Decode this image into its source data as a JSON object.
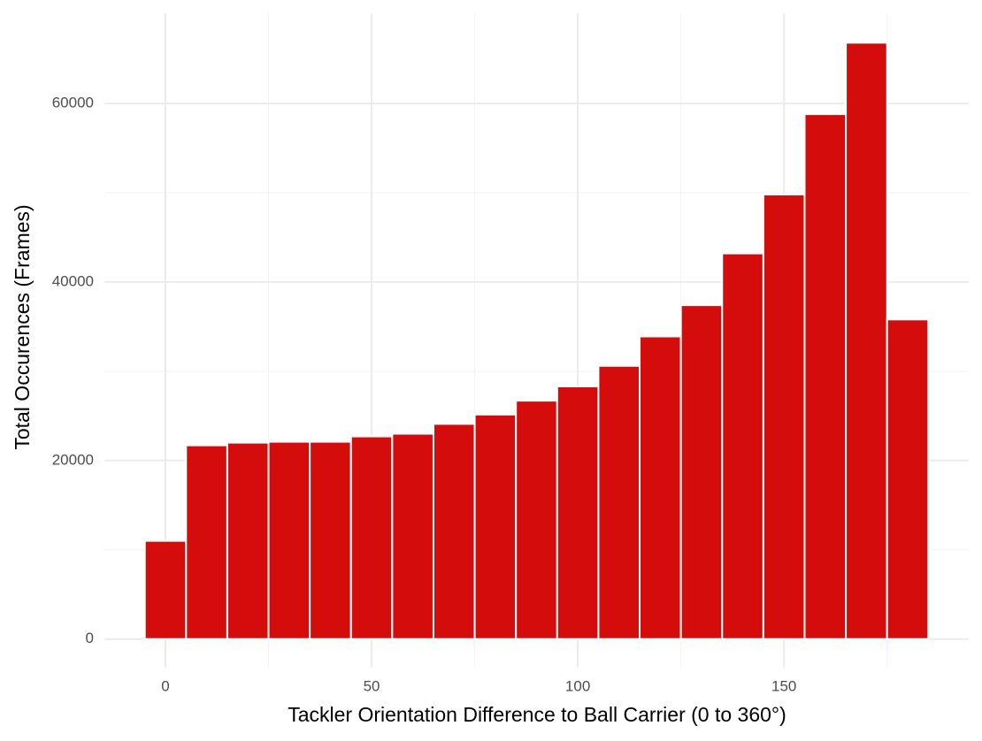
{
  "chart_data": {
    "type": "histogram",
    "xlabel": "Tackler Orientation Difference to Ball Carrier (0 to 360°)",
    "ylabel": "Total Occurences (Frames)",
    "bins": [
      -5,
      5,
      15,
      25,
      35,
      45,
      55,
      65,
      75,
      85,
      95,
      105,
      115,
      125,
      135,
      145,
      155,
      165,
      175,
      185
    ],
    "values": [
      11000,
      21700,
      22000,
      22100,
      22100,
      22700,
      23000,
      24100,
      25150,
      26700,
      28300,
      30600,
      33900,
      37400,
      43200,
      49800,
      58800,
      66800,
      35800
    ],
    "color": "#d40c0c",
    "xlim": [
      -14.8,
      194.8
    ],
    "ylim": [
      -3200,
      70100
    ],
    "xticks": [
      0,
      50,
      100,
      150
    ],
    "yticks": [
      0,
      20000,
      40000,
      60000
    ],
    "xminor": [
      25,
      75,
      125,
      175
    ],
    "yminor": [
      10000,
      30000,
      50000
    ],
    "grid": true
  }
}
